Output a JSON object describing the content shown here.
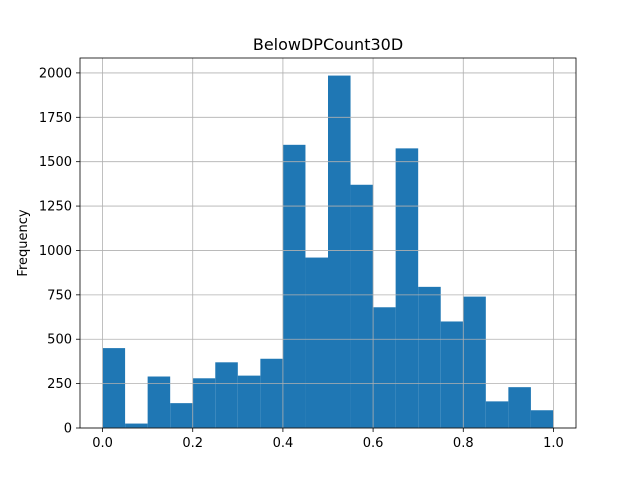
{
  "chart_data": {
    "type": "bar",
    "title": "BelowDPCount30D",
    "xlabel": "",
    "ylabel": "Frequency",
    "bins": [
      {
        "x0": 0.0,
        "x1": 0.05,
        "value": 450
      },
      {
        "x0": 0.05,
        "x1": 0.1,
        "value": 25
      },
      {
        "x0": 0.1,
        "x1": 0.15,
        "value": 290
      },
      {
        "x0": 0.15,
        "x1": 0.2,
        "value": 140
      },
      {
        "x0": 0.2,
        "x1": 0.25,
        "value": 280
      },
      {
        "x0": 0.25,
        "x1": 0.3,
        "value": 370
      },
      {
        "x0": 0.3,
        "x1": 0.35,
        "value": 295
      },
      {
        "x0": 0.35,
        "x1": 0.4,
        "value": 390
      },
      {
        "x0": 0.4,
        "x1": 0.45,
        "value": 1595
      },
      {
        "x0": 0.45,
        "x1": 0.5,
        "value": 960
      },
      {
        "x0": 0.5,
        "x1": 0.55,
        "value": 1985
      },
      {
        "x0": 0.55,
        "x1": 0.6,
        "value": 1370
      },
      {
        "x0": 0.6,
        "x1": 0.65,
        "value": 680
      },
      {
        "x0": 0.65,
        "x1": 0.7,
        "value": 1575
      },
      {
        "x0": 0.7,
        "x1": 0.75,
        "value": 795
      },
      {
        "x0": 0.75,
        "x1": 0.8,
        "value": 600
      },
      {
        "x0": 0.8,
        "x1": 0.85,
        "value": 740
      },
      {
        "x0": 0.85,
        "x1": 0.9,
        "value": 150
      },
      {
        "x0": 0.9,
        "x1": 0.95,
        "value": 230
      },
      {
        "x0": 0.95,
        "x1": 1.0,
        "value": 100
      }
    ],
    "xlim": [
      -0.05,
      1.05
    ],
    "ylim": [
      0,
      2084
    ],
    "xticks": [
      0.0,
      0.2,
      0.4,
      0.6,
      0.8,
      1.0
    ],
    "xtick_labels": [
      "0.0",
      "0.2",
      "0.4",
      "0.6",
      "0.8",
      "1.0"
    ],
    "yticks": [
      0,
      250,
      500,
      750,
      1000,
      1250,
      1500,
      1750,
      2000
    ],
    "ytick_labels": [
      "0",
      "250",
      "500",
      "750",
      "1000",
      "1250",
      "1500",
      "1750",
      "2000"
    ],
    "grid": true,
    "bar_color": "#1f77b4"
  }
}
